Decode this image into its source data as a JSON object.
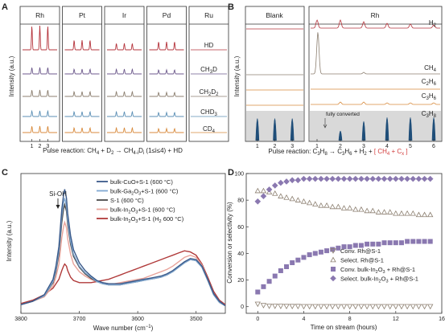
{
  "panels": {
    "A": {
      "letter": "A",
      "metals": [
        "Rh",
        "Pt",
        "Ir",
        "Pd",
        "Ru"
      ],
      "species": [
        "HD",
        "CH3D",
        "CH2D2",
        "CHD3",
        "CD4"
      ],
      "species_display": [
        {
          "base": "HD",
          "sub": ""
        },
        {
          "base": "CH",
          "sub": "3",
          "tail": "D"
        },
        {
          "base": "CH",
          "sub": "2",
          "tail": "D",
          "sub2": "2"
        },
        {
          "base": "CHD",
          "sub": "3"
        },
        {
          "base": "CD",
          "sub": "4"
        }
      ],
      "ylabel": "Intensity (a.u.)",
      "xticks": [
        "1",
        "2",
        "3"
      ],
      "caption": "Pulse reaction: CH4 + D2 → CH4-iDi (1≤i≤4) + HD",
      "colors": [
        "#b5343c",
        "#6d5a8c",
        "#8c7f70",
        "#5b8fb5",
        "#d88a3c"
      ]
    },
    "B": {
      "letter": "B",
      "left_title": "Blank",
      "right_title": "Rh",
      "species": [
        "H2",
        "CH4",
        "C2H6",
        "C3H6",
        "C3H8"
      ],
      "ylabel": "Intensity (a.u.)",
      "xticks": [
        "1",
        "2",
        "3",
        "4",
        "5",
        "6"
      ],
      "annotation": "fully converted",
      "caption_main": "Pulse reaction: C3H8 → C3H6 + H2 + ",
      "caption_red": "[ CH4 + Cx ]",
      "colors": [
        "#b5343c",
        "#8c7f70",
        "#d88a3c",
        "#d88a3c",
        "#1f4e79"
      ]
    },
    "C": {
      "letter": "C",
      "peak_label": "Si-OH",
      "xlabel": "Wave number (cm−1)",
      "ylabel": "Intensity (a.u.)",
      "xticks": [
        "3800",
        "3700",
        "3600",
        "3500"
      ]
    },
    "D": {
      "letter": "D",
      "xlabel": "Time on stream (hours)",
      "ylabel": "Conversion or selectivity (%)"
    }
  },
  "chart_data": [
    {
      "id": "C",
      "type": "line",
      "xlabel": "Wave number (cm−1)",
      "ylabel": "Intensity (a.u.)",
      "xlim": [
        3800,
        3450
      ],
      "xticks": [
        3800,
        3700,
        3600,
        3500
      ],
      "ylim": [
        0,
        1.2
      ],
      "series": [
        {
          "name": "bulk-CuO+S-1 (600 °C)",
          "color": "#3b5a8a",
          "x": [
            3800,
            3780,
            3760,
            3745,
            3740,
            3735,
            3730,
            3727,
            3725,
            3722,
            3720,
            3715,
            3710,
            3700,
            3690,
            3680,
            3670,
            3660,
            3650,
            3640,
            3630,
            3620,
            3610,
            3600,
            3590,
            3580,
            3570,
            3560,
            3550,
            3540,
            3530,
            3520,
            3510,
            3500,
            3490,
            3480,
            3470,
            3460,
            3450
          ],
          "y": [
            0.05,
            0.08,
            0.14,
            0.28,
            0.4,
            0.58,
            0.92,
            1.05,
            1.1,
            1.02,
            0.88,
            0.68,
            0.55,
            0.43,
            0.36,
            0.31,
            0.27,
            0.25,
            0.24,
            0.24,
            0.24,
            0.25,
            0.26,
            0.27,
            0.28,
            0.29,
            0.3,
            0.31,
            0.33,
            0.36,
            0.4,
            0.44,
            0.47,
            0.46,
            0.4,
            0.28,
            0.15,
            0.08,
            0.04
          ]
        },
        {
          "name": "bulk-Ga2O3+S-1 (600 °C)",
          "color": "#7fa8d2",
          "x": [
            3800,
            3780,
            3760,
            3745,
            3740,
            3735,
            3730,
            3727,
            3725,
            3722,
            3720,
            3715,
            3710,
            3700,
            3690,
            3680,
            3670,
            3660,
            3650,
            3640,
            3630,
            3620,
            3610,
            3600,
            3590,
            3580,
            3570,
            3560,
            3550,
            3540,
            3530,
            3520,
            3510,
            3500,
            3490,
            3480,
            3470,
            3460,
            3450
          ],
          "y": [
            0.05,
            0.08,
            0.13,
            0.26,
            0.37,
            0.54,
            0.86,
            0.98,
            1.02,
            0.95,
            0.82,
            0.63,
            0.51,
            0.4,
            0.34,
            0.3,
            0.26,
            0.24,
            0.23,
            0.23,
            0.23,
            0.24,
            0.25,
            0.26,
            0.27,
            0.28,
            0.29,
            0.3,
            0.32,
            0.35,
            0.39,
            0.43,
            0.46,
            0.45,
            0.39,
            0.27,
            0.14,
            0.07,
            0.04
          ]
        },
        {
          "name": "S-1 (600 °C)",
          "color": "#4a4a4a",
          "x": [
            3800,
            3780,
            3760,
            3745,
            3740,
            3735,
            3730,
            3727,
            3725,
            3722,
            3720,
            3715,
            3710,
            3700,
            3690,
            3680,
            3670,
            3660,
            3650,
            3640,
            3630,
            3620,
            3610,
            3600,
            3590,
            3580,
            3570,
            3560,
            3550,
            3540,
            3530,
            3520,
            3510,
            3500,
            3490,
            3480,
            3470,
            3460,
            3450
          ],
          "y": [
            0.05,
            0.08,
            0.13,
            0.25,
            0.35,
            0.51,
            0.8,
            0.92,
            0.96,
            0.9,
            0.78,
            0.6,
            0.49,
            0.39,
            0.33,
            0.29,
            0.26,
            0.24,
            0.23,
            0.23,
            0.23,
            0.24,
            0.25,
            0.26,
            0.27,
            0.28,
            0.29,
            0.3,
            0.32,
            0.35,
            0.39,
            0.43,
            0.46,
            0.45,
            0.39,
            0.27,
            0.14,
            0.07,
            0.04
          ]
        },
        {
          "name": "bulk-In2O3+S-1 (600 °C)",
          "color": "#e8a39a",
          "x": [
            3800,
            3780,
            3760,
            3745,
            3740,
            3735,
            3730,
            3727,
            3725,
            3722,
            3720,
            3715,
            3710,
            3700,
            3690,
            3680,
            3670,
            3660,
            3650,
            3640,
            3630,
            3620,
            3610,
            3600,
            3590,
            3580,
            3570,
            3560,
            3550,
            3540,
            3530,
            3520,
            3510,
            3500,
            3490,
            3480,
            3470,
            3460,
            3450
          ],
          "y": [
            0.05,
            0.08,
            0.12,
            0.22,
            0.3,
            0.42,
            0.66,
            0.76,
            0.8,
            0.75,
            0.65,
            0.51,
            0.42,
            0.35,
            0.31,
            0.28,
            0.26,
            0.25,
            0.24,
            0.24,
            0.25,
            0.26,
            0.27,
            0.28,
            0.29,
            0.31,
            0.33,
            0.35,
            0.37,
            0.4,
            0.44,
            0.48,
            0.5,
            0.48,
            0.41,
            0.28,
            0.15,
            0.08,
            0.04
          ]
        },
        {
          "name": "bulk-In2O3+S-1 (H2 600 °C)",
          "color": "#b03a3a",
          "x": [
            3800,
            3780,
            3760,
            3745,
            3740,
            3735,
            3730,
            3727,
            3725,
            3722,
            3720,
            3715,
            3710,
            3700,
            3690,
            3680,
            3670,
            3660,
            3650,
            3640,
            3630,
            3620,
            3610,
            3600,
            3590,
            3580,
            3570,
            3560,
            3550,
            3540,
            3530,
            3520,
            3510,
            3500,
            3490,
            3480,
            3470,
            3460,
            3450
          ],
          "y": [
            0.06,
            0.09,
            0.14,
            0.2,
            0.24,
            0.28,
            0.36,
            0.4,
            0.42,
            0.4,
            0.36,
            0.3,
            0.27,
            0.25,
            0.25,
            0.25,
            0.26,
            0.27,
            0.28,
            0.3,
            0.32,
            0.34,
            0.36,
            0.38,
            0.4,
            0.42,
            0.44,
            0.46,
            0.48,
            0.5,
            0.52,
            0.54,
            0.53,
            0.5,
            0.42,
            0.3,
            0.17,
            0.09,
            0.05
          ]
        }
      ]
    },
    {
      "id": "D",
      "type": "scatter",
      "xlabel": "Time on stream (hours)",
      "ylabel": "Conversion or selectivity (%)",
      "xlim": [
        -1,
        16
      ],
      "xticks": [
        0,
        4,
        8,
        12,
        16
      ],
      "ylim": [
        -5,
        100
      ],
      "yticks": [
        0,
        20,
        40,
        60,
        80,
        100
      ],
      "series": [
        {
          "name": "Conv. Rh@S-1",
          "marker": "triangle-down-open",
          "color": "#8c7f70",
          "x": [
            0,
            0.5,
            1,
            1.5,
            2,
            2.5,
            3,
            3.5,
            4,
            4.5,
            5,
            5.5,
            6,
            6.5,
            7,
            7.5,
            8,
            8.5,
            9,
            9.5,
            10,
            10.5,
            11,
            11.5,
            12,
            12.5,
            13,
            13.5,
            14,
            14.5,
            15
          ],
          "y": [
            2,
            1,
            0.5,
            0.5,
            0.4,
            0.3,
            0.3,
            0.3,
            0.2,
            0.2,
            0.2,
            0.2,
            0.2,
            0.2,
            0.2,
            0.2,
            0.2,
            0.2,
            0.2,
            0.2,
            0.2,
            0.2,
            0.2,
            0.2,
            0.2,
            0.2,
            0.2,
            0.2,
            0.2,
            0.2,
            0.2
          ]
        },
        {
          "name": "Select. Rh@S-1",
          "marker": "triangle-up-open",
          "color": "#8c7f70",
          "x": [
            0,
            0.5,
            1,
            1.5,
            2,
            2.5,
            3,
            3.5,
            4,
            4.5,
            5,
            5.5,
            6,
            6.5,
            7,
            7.5,
            8,
            8.5,
            9,
            9.5,
            10,
            10.5,
            11,
            11.5,
            12,
            12.5,
            13,
            13.5,
            14,
            14.5,
            15
          ],
          "y": [
            87,
            87,
            86,
            85,
            83,
            82,
            81,
            80,
            79,
            78,
            77,
            76,
            76,
            75,
            75,
            74,
            74,
            73,
            73,
            72,
            72,
            71,
            71,
            71,
            70,
            70,
            70,
            70,
            69,
            69,
            69
          ]
        },
        {
          "name": "Conv. bulk-In2O3 + Rh@S-1",
          "marker": "square",
          "color": "#8a78b0",
          "x": [
            0,
            0.5,
            1,
            1.5,
            2,
            2.5,
            3,
            3.5,
            4,
            4.5,
            5,
            5.5,
            6,
            6.5,
            7,
            7.5,
            8,
            8.5,
            9,
            9.5,
            10,
            10.5,
            11,
            11.5,
            12,
            12.5,
            13,
            13.5,
            14,
            14.5,
            15
          ],
          "y": [
            11,
            15,
            19,
            23,
            27,
            30,
            33,
            35,
            37,
            39,
            40,
            41,
            42,
            43,
            44,
            45,
            45,
            46,
            46,
            47,
            47,
            47,
            48,
            48,
            48,
            48,
            49,
            49,
            49,
            49,
            49
          ]
        },
        {
          "name": "Select. bulk-In2O3 + Rh@S-1",
          "marker": "diamond",
          "color": "#8a78b0",
          "x": [
            0,
            0.5,
            1,
            1.5,
            2,
            2.5,
            3,
            3.5,
            4,
            4.5,
            5,
            5.5,
            6,
            6.5,
            7,
            7.5,
            8,
            8.5,
            9,
            9.5,
            10,
            10.5,
            11,
            11.5,
            12,
            12.5,
            13,
            13.5,
            14,
            14.5,
            15
          ],
          "y": [
            79,
            83,
            88,
            91,
            93,
            94,
            95,
            95,
            96,
            96,
            96,
            96,
            96,
            96,
            96,
            96,
            96,
            96,
            96,
            96,
            96,
            96,
            96,
            96,
            96,
            96,
            96,
            96,
            96,
            96,
            96
          ]
        }
      ]
    }
  ]
}
